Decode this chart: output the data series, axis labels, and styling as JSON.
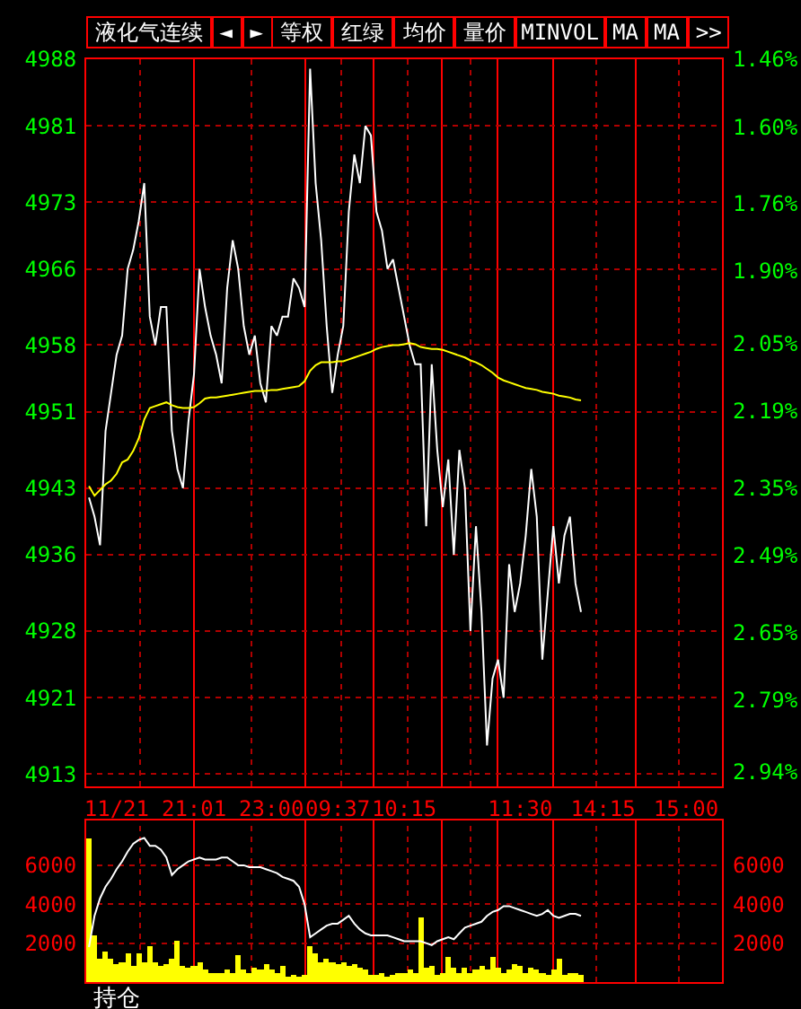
{
  "chart_data": [
    {
      "type": "line",
      "title": "液化气连续",
      "annotations": [
        "◄",
        "►",
        "等权",
        "红绿",
        "均价",
        "量价",
        "MINVOL",
        "MA",
        "MA",
        ">>"
      ],
      "categories": [
        null,
        null,
        null,
        null,
        null,
        "11/21",
        null,
        null,
        null,
        null,
        null,
        null,
        null,
        null,
        null,
        null,
        null,
        null,
        null,
        "21:01",
        null,
        null,
        null,
        null,
        null,
        null,
        null,
        null,
        null,
        null,
        null,
        null,
        null,
        "23:00",
        null,
        null,
        null,
        null,
        null,
        null,
        null,
        null,
        null,
        null,
        null,
        "09:37",
        null,
        null,
        null,
        null,
        null,
        null,
        null,
        null,
        null,
        null,
        null,
        "10:15",
        null,
        null,
        null,
        null,
        null,
        null,
        null,
        null,
        null,
        null,
        null,
        null,
        null,
        null,
        null,
        null,
        null,
        null,
        null,
        null,
        "11:30",
        null,
        null,
        null,
        null,
        null,
        null,
        null,
        null,
        null,
        null,
        null,
        null,
        null,
        null,
        "14:15",
        null,
        null,
        null,
        null,
        null,
        null,
        null,
        null,
        null,
        null,
        null,
        null,
        null,
        null,
        "15:00",
        null,
        null,
        null,
        null,
        null,
        null
      ],
      "ylim": [
        4911.7,
        4988
      ],
      "yticks": [
        4988,
        4981,
        4973,
        4966,
        4958,
        4951,
        4943,
        4936,
        4928,
        4921,
        4913
      ],
      "y2lim": [
        2.97,
        1.46
      ],
      "y2ticks": [
        {
          "value": 1.46,
          "label": "1.46%"
        },
        {
          "value": 1.6,
          "label": "1.60%"
        },
        {
          "value": 1.76,
          "label": "1.76%"
        },
        {
          "value": 1.9,
          "label": "1.90%"
        },
        {
          "value": 2.05,
          "label": "2.05%"
        },
        {
          "value": 2.19,
          "label": "2.19%"
        },
        {
          "value": 2.35,
          "label": "2.35%"
        },
        {
          "value": 2.49,
          "label": "2.49%"
        },
        {
          "value": 2.65,
          "label": "2.65%"
        },
        {
          "value": 2.79,
          "label": "2.79%"
        },
        {
          "value": 2.94,
          "label": "2.94%"
        }
      ],
      "grid": "y",
      "series": [
        {
          "color": "#ffffff",
          "values": [
            4942,
            4940,
            4937,
            4949,
            4953,
            4957,
            4959,
            4966,
            4968,
            4971,
            4975,
            4961,
            4958,
            4962,
            4962,
            4949,
            4945,
            4943,
            4950,
            4955,
            4966,
            4962,
            4959,
            4957,
            4954,
            4964,
            4969,
            4966,
            4960,
            4957,
            4959,
            4954,
            4952,
            4960,
            4959,
            4961,
            4961,
            4965,
            4964,
            4962,
            4987,
            4975,
            4969,
            4960,
            4953,
            4957,
            4960,
            4972,
            4978,
            4975,
            4981,
            4980,
            4972,
            4970,
            4966,
            4967,
            4964,
            4961,
            4958,
            4956,
            4956,
            4939,
            4956,
            4947,
            4941,
            4946,
            4936,
            4947,
            4943,
            4928,
            4939,
            4930,
            4916,
            4923,
            4925,
            4921,
            4935,
            4930,
            4933,
            4938,
            4945,
            4940,
            4925,
            4932,
            4939,
            4933,
            4938,
            4940,
            4933,
            4930,
            null,
            null,
            null,
            null,
            null,
            null,
            null,
            null,
            null,
            null,
            null,
            null,
            null,
            null,
            null,
            null,
            null,
            null,
            null,
            null,
            null,
            null,
            null,
            null,
            null
          ]
        },
        {
          "color": "#ffff00",
          "values": [
            4943.2,
            4942.2,
            4942.8,
            4943.4,
            4943.8,
            4944.5,
            4945.7,
            4946.0,
            4946.9,
            4948.2,
            4950.2,
            4951.4,
            4951.6,
            4951.8,
            4952.0,
            4951.7,
            4951.5,
            4951.4,
            4951.4,
            4951.5,
            4951.9,
            4952.4,
            4952.5,
            4952.5,
            4952.6,
            4952.7,
            4952.8,
            4952.9,
            4953.0,
            4953.1,
            4953.2,
            4953.2,
            4953.2,
            4953.3,
            4953.3,
            4953.4,
            4953.5,
            4953.6,
            4953.7,
            4954.2,
            4955.3,
            4955.9,
            4956.2,
            4956.2,
            4956.2,
            4956.3,
            4956.3,
            4956.5,
            4956.7,
            4956.9,
            4957.1,
            4957.3,
            4957.6,
            4957.8,
            4957.9,
            4958.0,
            4958.0,
            4958.1,
            4958.2,
            4958.1,
            4957.8,
            4957.7,
            4957.6,
            4957.6,
            4957.5,
            4957.3,
            4957.1,
            4956.9,
            4956.7,
            4956.4,
            4956.2,
            4955.9,
            4955.5,
            4955.1,
            4954.6,
            4954.3,
            4954.1,
            4953.9,
            4953.7,
            4953.5,
            4953.4,
            4953.3,
            4953.1,
            4953.0,
            4952.9,
            4952.7,
            4952.6,
            4952.5,
            4952.3,
            4952.2,
            null,
            null,
            null,
            null,
            null,
            null,
            null,
            null,
            null,
            null,
            null,
            null,
            null,
            null,
            null,
            null,
            null,
            null,
            null,
            null,
            null,
            null,
            null,
            null,
            null
          ]
        }
      ]
    },
    {
      "type": "bar",
      "annotations": [
        "持仓"
      ],
      "categories": [
        null,
        null,
        null,
        null,
        null,
        null,
        null,
        null,
        null,
        null,
        null,
        null,
        null,
        null,
        null,
        null,
        null,
        null,
        null,
        null,
        null,
        null,
        null,
        null,
        null,
        null,
        null,
        null,
        null,
        null,
        null,
        null,
        null,
        null,
        null,
        null,
        null,
        null,
        null,
        null,
        null,
        null,
        null,
        null,
        null,
        null,
        null,
        null,
        null,
        null,
        null,
        null,
        null,
        null,
        null,
        null,
        null,
        null,
        null,
        null,
        null,
        null,
        null,
        null,
        null,
        null,
        null,
        null,
        null,
        null,
        null,
        null,
        null,
        null,
        null,
        null,
        null,
        null,
        null,
        null,
        null,
        null,
        null,
        null,
        null,
        null,
        null,
        null,
        null,
        null,
        null,
        null,
        null,
        null,
        null,
        null,
        null,
        null,
        null,
        null,
        null,
        null,
        null,
        null,
        null,
        null,
        null,
        null,
        null,
        null,
        null,
        null,
        null,
        null,
        null
      ],
      "ylim": [
        0,
        8300
      ],
      "yticks": [
        2000,
        4000,
        6000
      ],
      "y2lim": [
        0,
        8300
      ],
      "y2ticks": [
        2000,
        4000,
        6000
      ],
      "grid": "y",
      "tick_labels": "y",
      "series": [
        {
          "type": "bar",
          "color": "#ffff00",
          "values": [
            7400,
            2400,
            1200,
            1600,
            1200,
            900,
            1000,
            1500,
            800,
            1500,
            1000,
            1800,
            1000,
            800,
            900,
            1200,
            2100,
            800,
            700,
            800,
            1000,
            600,
            500,
            500,
            500,
            600,
            500,
            1400,
            600,
            500,
            700,
            600,
            900,
            600,
            500,
            800,
            300,
            400,
            300,
            400,
            1800,
            1500,
            1000,
            1200,
            1000,
            900,
            1000,
            800,
            900,
            700,
            600,
            400,
            400,
            500,
            300,
            400,
            500,
            500,
            600,
            500,
            3300,
            700,
            800,
            400,
            500,
            1300,
            700,
            500,
            700,
            500,
            600,
            800,
            600,
            1300,
            700,
            500,
            600,
            900,
            800,
            500,
            700,
            600,
            500,
            400,
            600,
            1200,
            400,
            500,
            500,
            400,
            null,
            null,
            null,
            null,
            null,
            null,
            null,
            null,
            null,
            null,
            null,
            null,
            null,
            null,
            null,
            null,
            null,
            null,
            null,
            null,
            null,
            null,
            null,
            null,
            null
          ]
        },
        {
          "type": "line",
          "color": "#ffffff",
          "values": [
            1800,
            3400,
            4300,
            4900,
            5300,
            5800,
            6200,
            6700,
            7100,
            7300,
            7400,
            7000,
            7000,
            6800,
            6400,
            5500,
            5800,
            6000,
            6200,
            6300,
            6400,
            6300,
            6300,
            6300,
            6400,
            6400,
            6200,
            6000,
            6000,
            5900,
            5900,
            5900,
            5800,
            5700,
            5600,
            5400,
            5300,
            5200,
            4900,
            4000,
            2300,
            2500,
            2700,
            2900,
            3000,
            3000,
            3200,
            3400,
            3000,
            2700,
            2500,
            2400,
            2400,
            2400,
            2400,
            2300,
            2200,
            2100,
            2100,
            2100,
            2100,
            2000,
            1900,
            2100,
            2200,
            2300,
            2200,
            2500,
            2800,
            2900,
            3000,
            3100,
            3400,
            3600,
            3700,
            3900,
            3900,
            3800,
            3700,
            3600,
            3500,
            3400,
            3500,
            3700,
            3400,
            3300,
            3400,
            3500,
            3500,
            3400,
            null,
            null,
            null,
            null,
            null,
            null,
            null,
            null,
            null,
            null,
            null,
            null,
            null,
            null,
            null,
            null,
            null,
            null,
            null,
            null,
            null,
            null,
            null,
            null,
            null
          ]
        }
      ]
    }
  ]
}
